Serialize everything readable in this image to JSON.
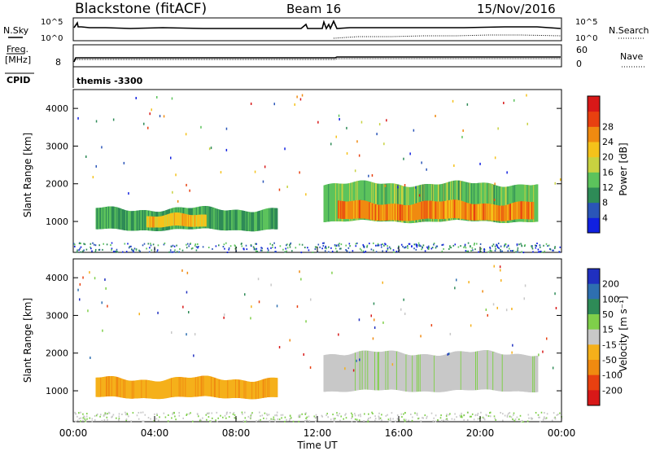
{
  "header": {
    "station": "Blackstone (fitACF)",
    "beam": "Beam 16",
    "date": "15/Nov/2016"
  },
  "top_panel": {
    "left_label": "N.Sky",
    "left_ticks": [
      "10^5",
      "10^0"
    ],
    "right_label": "N.Search",
    "right_ticks": [
      "10^5",
      "10^0"
    ]
  },
  "freq_panel": {
    "left_label_line1": "Freq.",
    "left_label_line2": "[MHz]",
    "left_tick": "8",
    "right_label": "Nave",
    "right_ticks": [
      "60",
      "0"
    ]
  },
  "cpid_panel": {
    "label": "CPID",
    "value": "themis -3300"
  },
  "x_axis": {
    "label": "Time UT",
    "ticks": [
      "00:00",
      "04:00",
      "08:00",
      "12:00",
      "16:00",
      "20:00",
      "00:00"
    ]
  },
  "chart_data": [
    {
      "type": "heatmap",
      "name": "power",
      "ylabel": "Slant Range [km]",
      "yticks": [
        1000,
        2000,
        3000,
        4000
      ],
      "ylim": [
        180,
        4500
      ],
      "xlim_hours": [
        0,
        24
      ],
      "colorbar": {
        "label": "Power [dB]",
        "ticks": [
          "4",
          "8",
          "12",
          "16",
          "20",
          "24",
          "28"
        ],
        "colors": [
          "#1020e0",
          "#2a55b8",
          "#2e8b57",
          "#5cc35c",
          "#c8d240",
          "#f5c21a",
          "#f08a10",
          "#e84010",
          "#d81818"
        ]
      },
      "bands": [
        {
          "t_start": 1.1,
          "t_end": 10.0,
          "range_low": 780,
          "range_high": 1330,
          "power": 10
        },
        {
          "t_start": 3.6,
          "t_end": 6.5,
          "range_low": 850,
          "range_high": 1150,
          "power": 20
        },
        {
          "t_start": 12.3,
          "t_end": 22.8,
          "range_low": 1000,
          "range_high": 2000,
          "power": 12
        },
        {
          "t_start": 13.0,
          "t_end": 22.6,
          "range_low": 1050,
          "range_high": 1500,
          "power": 24
        }
      ]
    },
    {
      "type": "heatmap",
      "name": "velocity",
      "ylabel": "Slant Range [km]",
      "yticks": [
        1000,
        2000,
        3000,
        4000
      ],
      "ylim": [
        180,
        4500
      ],
      "xlim_hours": [
        0,
        24
      ],
      "colorbar": {
        "label": "Velocity [m s⁻¹]",
        "ticks": [
          "200",
          "100",
          "50",
          "15",
          "-15",
          "-50",
          "-100",
          "-200"
        ],
        "colors": [
          "#2030c0",
          "#2e6fb0",
          "#2e8b57",
          "#7fcf4a",
          "#c8c8c8",
          "#f5b01a",
          "#f08a10",
          "#e84010",
          "#d81818"
        ]
      },
      "bands": [
        {
          "t_start": 1.1,
          "t_end": 10.0,
          "range_low": 820,
          "range_high": 1320,
          "velocity": -50
        },
        {
          "t_start": 12.3,
          "t_end": 22.8,
          "range_low": 1000,
          "range_high": 2000,
          "velocity": 0
        }
      ]
    }
  ]
}
